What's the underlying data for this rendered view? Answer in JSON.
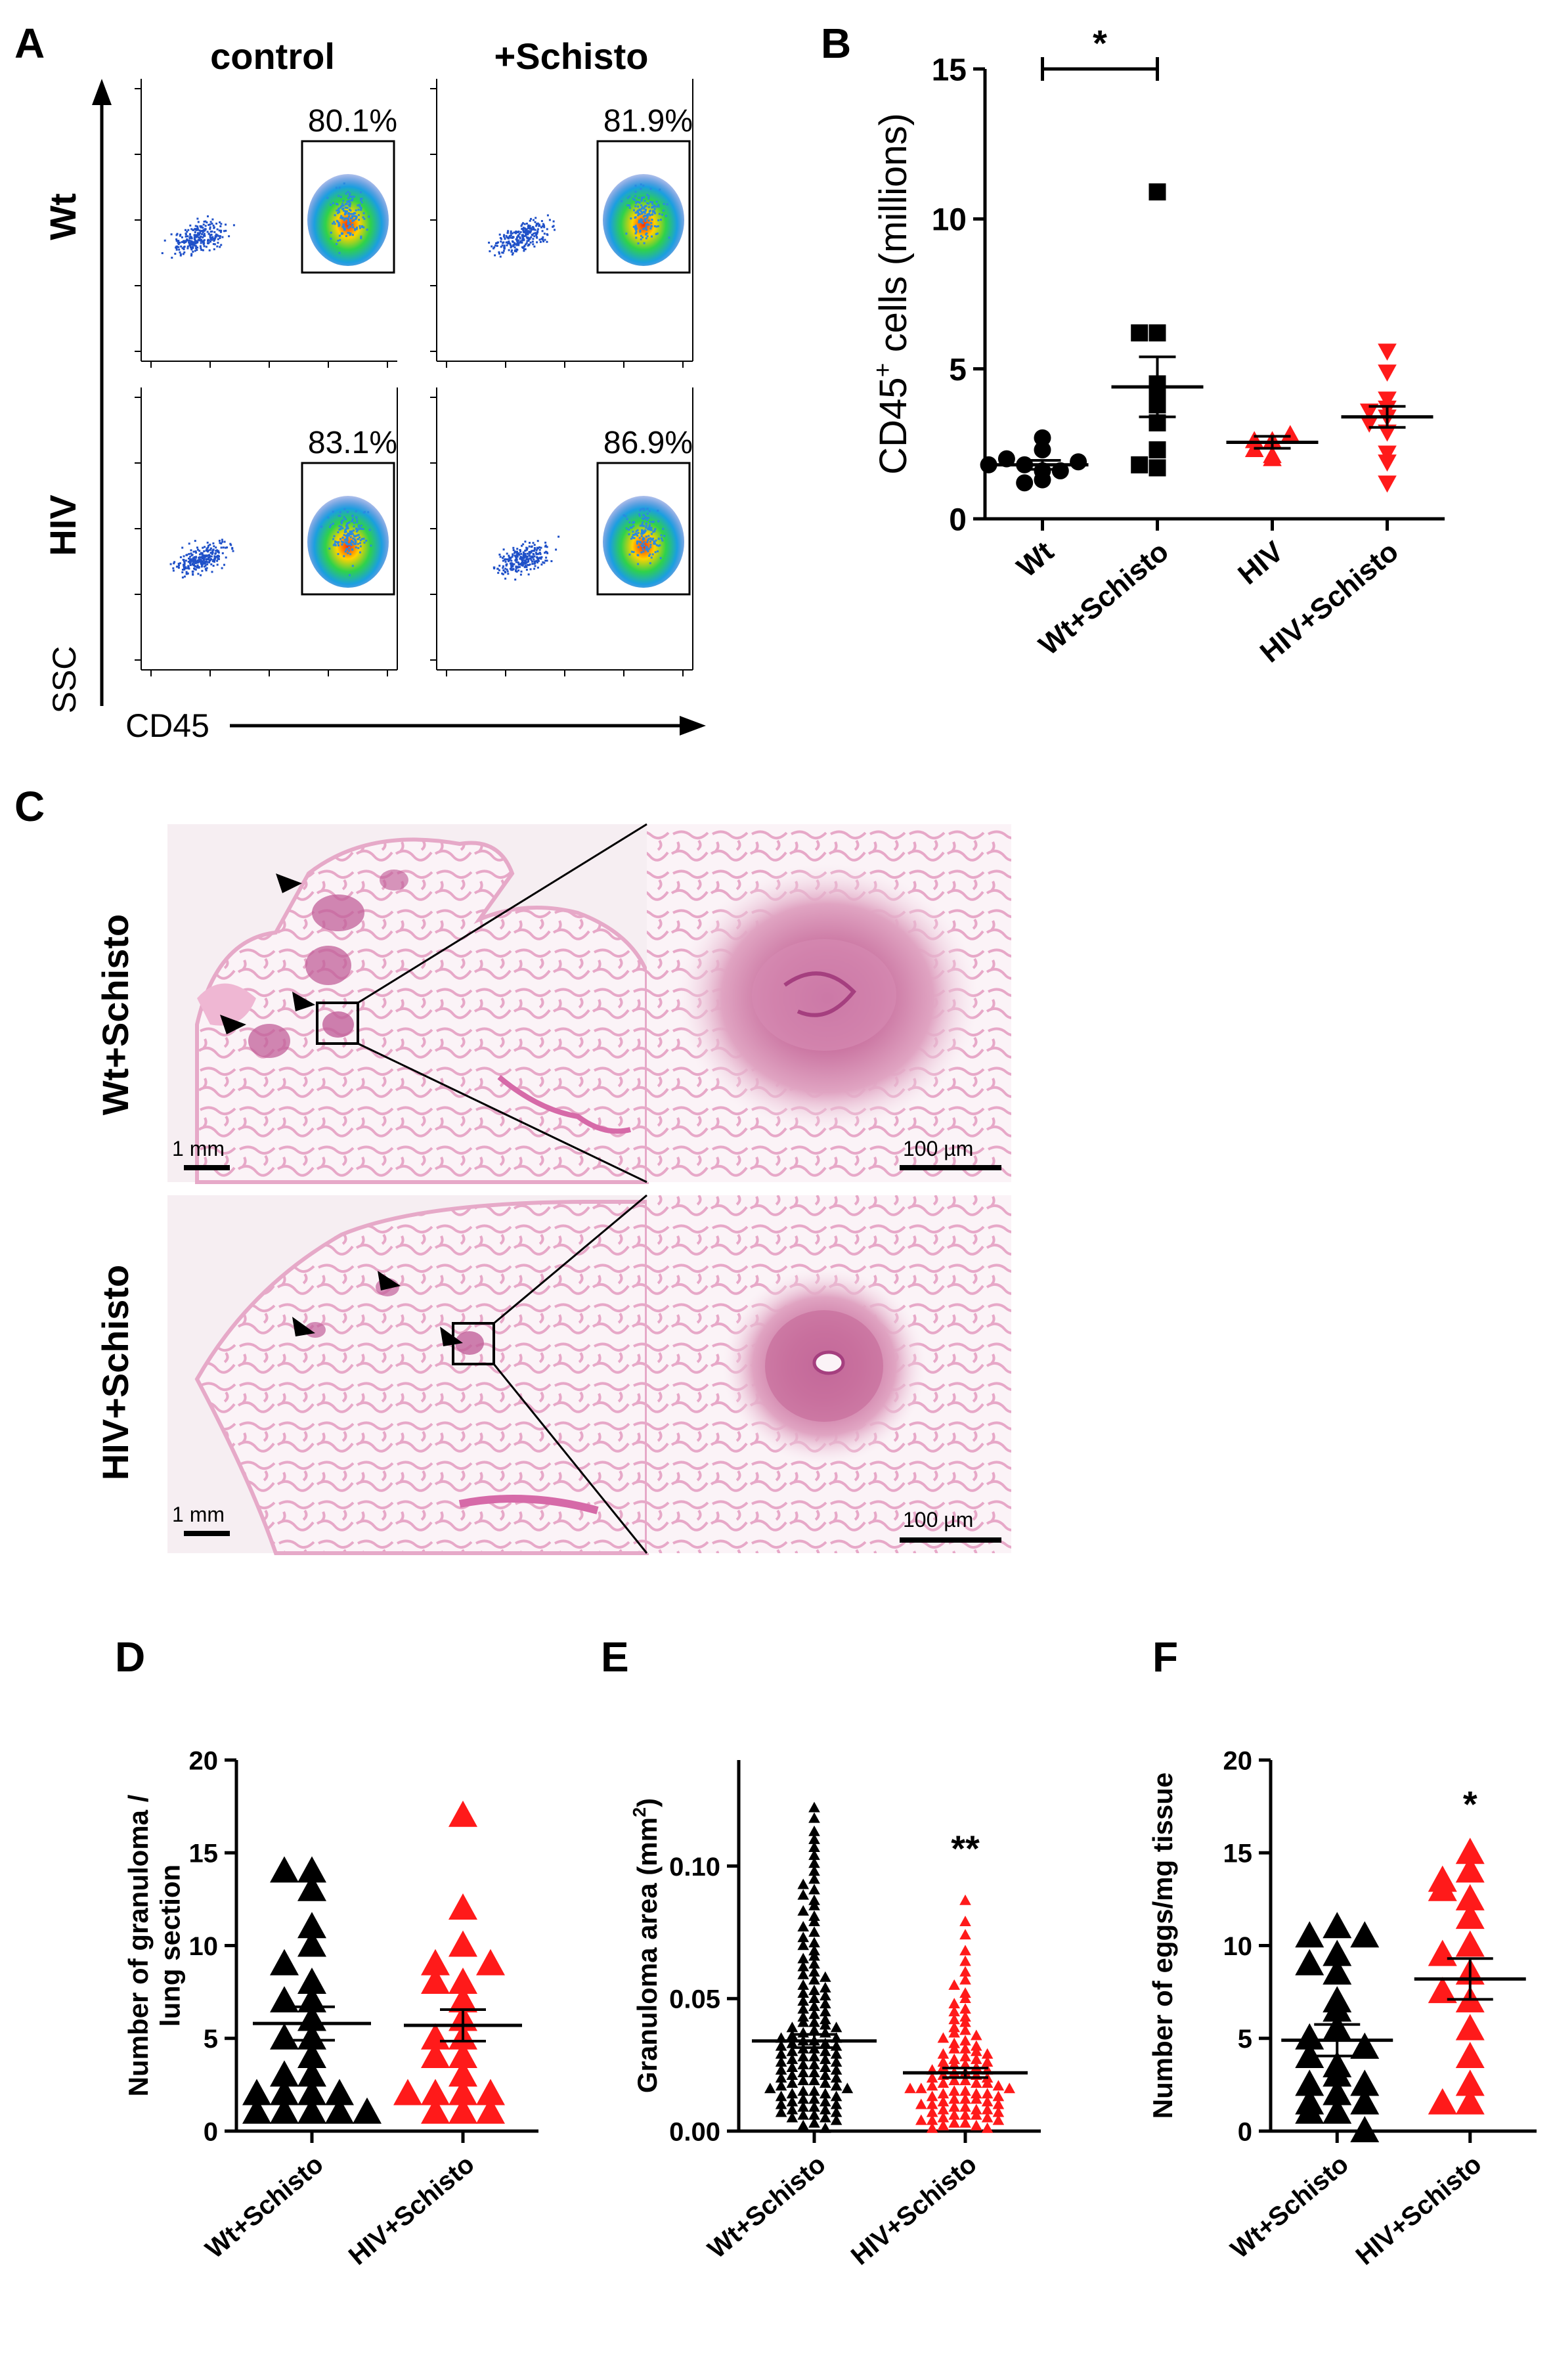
{
  "panel_letters": {
    "a": "A",
    "b": "B",
    "c": "C",
    "d": "D",
    "e": "E",
    "f": "F"
  },
  "panel_a": {
    "col_labels": [
      "control",
      "+Schisto"
    ],
    "row_labels": [
      "Wt",
      "HIV"
    ],
    "y_axis_label": "SSC",
    "x_axis_label": "CD45",
    "gate_percents": [
      [
        "80.1%",
        "81.9%"
      ],
      [
        "83.1%",
        "86.9%"
      ]
    ]
  },
  "panel_c": {
    "row_labels": [
      "Wt+Schisto",
      "HIV+Schisto"
    ],
    "scale_low": "1 mm",
    "scale_high": "100 µm"
  },
  "colors": {
    "black": "#000000",
    "red": "#ff1a1a",
    "tissue_pink": "#f0c8dc",
    "flow_blue": "#1f50c8"
  },
  "chart_data": [
    {
      "id": "B",
      "type": "scatter",
      "ylabel_main": "CD45",
      "ylabel_sup": "+",
      "ylabel_rest": " cells (millions)",
      "ylim": [
        0,
        15
      ],
      "yticks": [
        0,
        5,
        10,
        15
      ],
      "categories": [
        "Wt",
        "Wt+Schisto",
        "HIV",
        "HIV+Schisto"
      ],
      "marker": [
        "circle",
        "square",
        "triangle-up",
        "triangle-down"
      ],
      "color": [
        "black",
        "black",
        "red",
        "red"
      ],
      "points": [
        [
          1.3,
          1.6,
          1.8,
          1.6,
          2.0,
          2.3,
          2.7,
          1.9,
          1.2,
          1.8
        ],
        [
          10.9,
          6.2,
          6.2,
          4.5,
          4.3,
          3.8,
          3.2,
          1.7,
          1.8,
          2.3
        ],
        [
          2.6,
          2.1,
          2.6,
          2.0,
          2.8,
          2.3
        ],
        [
          5.6,
          4.9,
          3.7,
          4.0,
          3.4,
          3.6,
          2.9,
          2.2,
          1.2,
          1.9,
          3.2
        ]
      ],
      "mean": [
        1.8,
        4.4,
        2.55,
        3.4
      ],
      "sem": [
        0.15,
        1.0,
        0.2,
        0.35
      ],
      "significance": {
        "between": [
          0,
          1
        ],
        "label": "*"
      }
    },
    {
      "id": "D",
      "type": "scatter",
      "ylabel_lines": [
        "Number of granuloma /",
        "lung section"
      ],
      "ylim": [
        0,
        20
      ],
      "yticks": [
        0,
        5,
        10,
        15,
        20
      ],
      "categories": [
        "Wt+Schisto",
        "HIV+Schisto"
      ],
      "marker": [
        "triangle-up",
        "triangle-up"
      ],
      "color": [
        "black",
        "red"
      ],
      "points": [
        [
          14,
          14,
          13,
          11,
          10,
          9,
          8,
          7,
          7,
          6,
          5,
          4,
          3,
          3,
          2,
          2,
          2,
          2,
          1,
          1,
          1,
          1,
          1,
          5
        ],
        [
          17,
          12,
          10,
          9,
          9,
          8,
          8,
          7,
          6,
          5,
          4,
          4,
          3,
          2,
          2,
          2,
          2,
          1,
          1,
          1,
          5
        ]
      ],
      "mean": [
        5.8,
        5.7
      ],
      "sem": [
        0.9,
        0.85
      ],
      "annotation": [
        null,
        null
      ]
    },
    {
      "id": "E",
      "type": "scatter",
      "ylabel_main": "Granuloma area (mm",
      "ylabel_sup": "2",
      "ylabel_rest": ")",
      "ylim": [
        0,
        0.14
      ],
      "yticks": [
        0.0,
        0.05,
        0.1
      ],
      "ytick_labels": [
        "0.00",
        "0.05",
        "0.10"
      ],
      "categories": [
        "Wt+Schisto",
        "HIV+Schisto"
      ],
      "marker": [
        "triangle-up",
        "triangle-up"
      ],
      "color": [
        "black",
        "red"
      ],
      "points": [
        [
          0.122,
          0.118,
          0.113,
          0.11,
          0.107,
          0.104,
          0.101,
          0.098,
          0.095,
          0.093,
          0.091,
          0.089,
          0.087,
          0.085,
          0.083,
          0.081,
          0.079,
          0.077,
          0.075,
          0.073,
          0.071,
          0.07,
          0.068,
          0.066,
          0.065,
          0.063,
          0.062,
          0.06,
          0.059,
          0.058,
          0.057,
          0.055,
          0.054,
          0.053,
          0.052,
          0.051,
          0.05,
          0.049,
          0.048,
          0.047,
          0.046,
          0.045,
          0.044,
          0.043,
          0.042,
          0.041,
          0.041,
          0.04,
          0.039,
          0.039,
          0.038,
          0.037,
          0.037,
          0.036,
          0.035,
          0.035,
          0.034,
          0.034,
          0.033,
          0.033,
          0.032,
          0.032,
          0.031,
          0.031,
          0.03,
          0.03,
          0.029,
          0.029,
          0.028,
          0.028,
          0.027,
          0.027,
          0.026,
          0.026,
          0.025,
          0.025,
          0.024,
          0.024,
          0.023,
          0.023,
          0.022,
          0.022,
          0.021,
          0.021,
          0.02,
          0.02,
          0.019,
          0.019,
          0.018,
          0.018,
          0.017,
          0.017,
          0.016,
          0.016,
          0.015,
          0.015,
          0.014,
          0.014,
          0.013,
          0.013,
          0.012,
          0.012,
          0.011,
          0.011,
          0.01,
          0.01,
          0.009,
          0.009,
          0.008,
          0.008,
          0.007,
          0.007,
          0.006,
          0.006,
          0.005,
          0.005,
          0.004,
          0.003,
          0.002,
          0.001
        ],
        [
          0.087,
          0.079,
          0.074,
          0.068,
          0.064,
          0.06,
          0.057,
          0.055,
          0.052,
          0.05,
          0.048,
          0.046,
          0.045,
          0.043,
          0.042,
          0.041,
          0.039,
          0.038,
          0.037,
          0.036,
          0.035,
          0.034,
          0.033,
          0.032,
          0.031,
          0.031,
          0.03,
          0.029,
          0.029,
          0.028,
          0.027,
          0.027,
          0.026,
          0.026,
          0.025,
          0.025,
          0.024,
          0.024,
          0.023,
          0.023,
          0.022,
          0.022,
          0.021,
          0.021,
          0.02,
          0.02,
          0.019,
          0.019,
          0.018,
          0.018,
          0.018,
          0.017,
          0.017,
          0.016,
          0.016,
          0.016,
          0.015,
          0.015,
          0.014,
          0.014,
          0.014,
          0.013,
          0.013,
          0.012,
          0.012,
          0.012,
          0.011,
          0.011,
          0.01,
          0.01,
          0.01,
          0.009,
          0.009,
          0.008,
          0.008,
          0.008,
          0.007,
          0.007,
          0.006,
          0.006,
          0.006,
          0.005,
          0.005,
          0.004,
          0.004,
          0.004,
          0.003,
          0.003,
          0.002,
          0.002,
          0.001,
          0.001
        ]
      ],
      "mean": [
        0.034,
        0.022
      ],
      "sem": [
        0.0025,
        0.0018
      ],
      "annotation": [
        null,
        "**"
      ]
    },
    {
      "id": "F",
      "type": "scatter",
      "ylabel_lines": [
        "Number of eggs/mg tissue"
      ],
      "ylim": [
        0,
        20
      ],
      "yticks": [
        0,
        5,
        10,
        15,
        20
      ],
      "categories": [
        "Wt+Schisto",
        "HIV+Schisto"
      ],
      "marker": [
        "triangle-up",
        "triangle-up"
      ],
      "color": [
        "black",
        "red"
      ],
      "points": [
        [
          11,
          10.5,
          10.5,
          9.5,
          9,
          8.5,
          7,
          6.5,
          5.5,
          5,
          4.5,
          3.5,
          3,
          2.5,
          2.5,
          2,
          1.5,
          1.5,
          1,
          1,
          0,
          4
        ],
        [
          15,
          14,
          13.5,
          12.5,
          11.5,
          10,
          9.5,
          8.5,
          7,
          7.5,
          5.5,
          4,
          2.5,
          1.5,
          1.5,
          13
        ]
      ],
      "mean": [
        4.9,
        8.2
      ],
      "sem": [
        0.85,
        1.1
      ],
      "annotation": [
        null,
        "*"
      ]
    }
  ]
}
